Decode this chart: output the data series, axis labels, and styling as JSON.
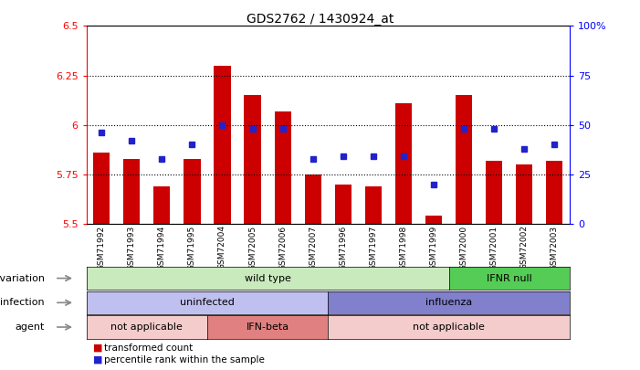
{
  "title": "GDS2762 / 1430924_at",
  "samples": [
    "GSM71992",
    "GSM71993",
    "GSM71994",
    "GSM71995",
    "GSM72004",
    "GSM72005",
    "GSM72006",
    "GSM72007",
    "GSM71996",
    "GSM71997",
    "GSM71998",
    "GSM71999",
    "GSM72000",
    "GSM72001",
    "GSM72002",
    "GSM72003"
  ],
  "red_values": [
    5.86,
    5.83,
    5.69,
    5.83,
    6.3,
    6.15,
    6.07,
    5.75,
    5.7,
    5.69,
    6.11,
    5.54,
    6.15,
    5.82,
    5.8,
    5.82
  ],
  "blue_pct": [
    46,
    42,
    33,
    40,
    50,
    48,
    48,
    33,
    34,
    34,
    34,
    20,
    48,
    48,
    38,
    40
  ],
  "ylim_left": [
    5.5,
    6.5
  ],
  "ylim_right": [
    0,
    100
  ],
  "yticks_left": [
    5.5,
    5.75,
    6.0,
    6.25,
    6.5
  ],
  "ytick_labels_left": [
    "5.5",
    "5.75",
    "6",
    "6.25",
    "6.5"
  ],
  "yticks_right": [
    0,
    25,
    50,
    75,
    100
  ],
  "ytick_labels_right": [
    "0",
    "25",
    "50",
    "75",
    "100%"
  ],
  "bar_color": "#cc0000",
  "dot_color": "#2222cc",
  "baseline": 5.5,
  "plot_bg": "#ffffff",
  "genotype_groups": [
    {
      "label": "wild type",
      "start": 0,
      "end": 12,
      "color": "#c8eabc"
    },
    {
      "label": "IFNR null",
      "start": 12,
      "end": 16,
      "color": "#55cc55"
    }
  ],
  "infection_groups": [
    {
      "label": "uninfected",
      "start": 0,
      "end": 8,
      "color": "#c0c0f0"
    },
    {
      "label": "influenza",
      "start": 8,
      "end": 16,
      "color": "#8080cc"
    }
  ],
  "agent_groups": [
    {
      "label": "not applicable",
      "start": 0,
      "end": 4,
      "color": "#f5cccc"
    },
    {
      "label": "IFN-beta",
      "start": 4,
      "end": 8,
      "color": "#e08080"
    },
    {
      "label": "not applicable",
      "start": 8,
      "end": 16,
      "color": "#f5cccc"
    }
  ],
  "legend_items": [
    {
      "color": "#cc0000",
      "label": "transformed count"
    },
    {
      "color": "#2222cc",
      "label": "percentile rank within the sample"
    }
  ]
}
